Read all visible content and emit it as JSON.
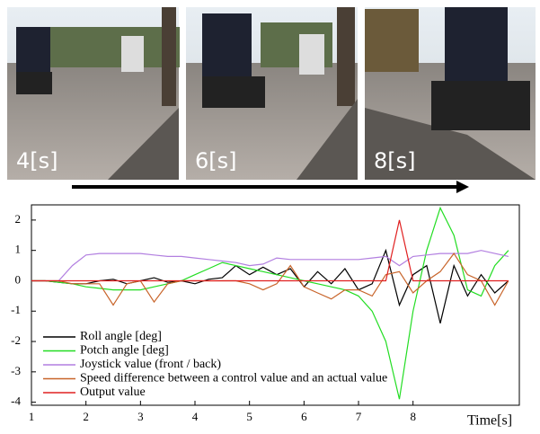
{
  "photos": {
    "labels": [
      "4[s]",
      "6[s]",
      "8[s]"
    ]
  },
  "chart_data": {
    "type": "line",
    "xlabel": "Time[s]",
    "x": [
      1,
      1.25,
      1.5,
      1.75,
      2,
      2.25,
      2.5,
      2.75,
      3,
      3.25,
      3.5,
      3.75,
      4,
      4.25,
      4.5,
      4.75,
      5,
      5.25,
      5.5,
      5.75,
      6,
      6.25,
      6.5,
      6.75,
      7,
      7.25,
      7.5,
      7.75,
      8,
      8.25,
      8.5,
      8.75,
      9,
      9.25,
      9.5,
      9.75
    ],
    "series": [
      {
        "name": "Roll angle [deg]",
        "color": "#000000",
        "values": [
          0,
          0,
          -0.05,
          -0.1,
          -0.1,
          0,
          0.05,
          -0.1,
          0,
          0.1,
          -0.05,
          0,
          -0.1,
          0.05,
          0.1,
          0.5,
          0.2,
          0.45,
          0.2,
          0.4,
          -0.2,
          0.3,
          -0.1,
          0.4,
          -0.3,
          -0.1,
          1.0,
          -0.8,
          0.2,
          0.5,
          -1.4,
          0.5,
          -0.5,
          0.2,
          -0.4,
          0
        ]
      },
      {
        "name": "Potch angle [deg]",
        "color": "#22dd22",
        "values": [
          0,
          0,
          -0.05,
          -0.1,
          -0.2,
          -0.25,
          -0.3,
          -0.3,
          -0.3,
          -0.2,
          -0.1,
          0,
          0.2,
          0.4,
          0.6,
          0.5,
          0.4,
          0.3,
          0.2,
          0.1,
          0,
          -0.1,
          -0.2,
          -0.3,
          -0.5,
          -1.0,
          -2.0,
          -3.9,
          -1.0,
          1.0,
          2.4,
          1.5,
          -0.3,
          -0.5,
          0.5,
          1.0
        ]
      },
      {
        "name": "Joystick value (front / back)",
        "color": "#b27fe0",
        "values": [
          0,
          0,
          0,
          0.5,
          0.85,
          0.9,
          0.9,
          0.9,
          0.9,
          0.85,
          0.8,
          0.8,
          0.75,
          0.7,
          0.65,
          0.6,
          0.5,
          0.55,
          0.75,
          0.7,
          0.7,
          0.7,
          0.7,
          0.7,
          0.7,
          0.75,
          0.8,
          0.5,
          0.8,
          0.85,
          0.9,
          0.9,
          0.9,
          1.0,
          0.9,
          0.8
        ]
      },
      {
        "name": "Speed difference between a control value and an actual value",
        "color": "#c8642a",
        "values": [
          0,
          0,
          0,
          -0.1,
          -0.1,
          -0.1,
          -0.8,
          -0.1,
          0,
          -0.7,
          -0.1,
          0,
          0,
          0,
          0,
          0,
          -0.1,
          -0.3,
          -0.1,
          0.5,
          -0.2,
          -0.4,
          -0.6,
          -0.3,
          -0.3,
          -0.5,
          0.2,
          0.3,
          -0.4,
          0,
          0.3,
          0.9,
          0.2,
          0,
          -0.8,
          0
        ]
      },
      {
        "name": "Output value",
        "color": "#e02020",
        "values": [
          0,
          0,
          0,
          0,
          0,
          0,
          0,
          0,
          0,
          0,
          0,
          0,
          0,
          0,
          0,
          0,
          0,
          0,
          0,
          0,
          0,
          0,
          0,
          0,
          0,
          0,
          0,
          2,
          0,
          0,
          0,
          0,
          0,
          0,
          0,
          0
        ]
      }
    ],
    "xlim": [
      1,
      9.95
    ],
    "xticks": [
      1,
      2,
      3,
      4,
      5,
      6,
      7,
      8
    ],
    "ylim": [
      -4.1,
      2.5
    ],
    "yticks": [
      -4,
      -3,
      -2,
      -1,
      0,
      1,
      2
    ],
    "legend": "lower-left",
    "grid": false
  }
}
